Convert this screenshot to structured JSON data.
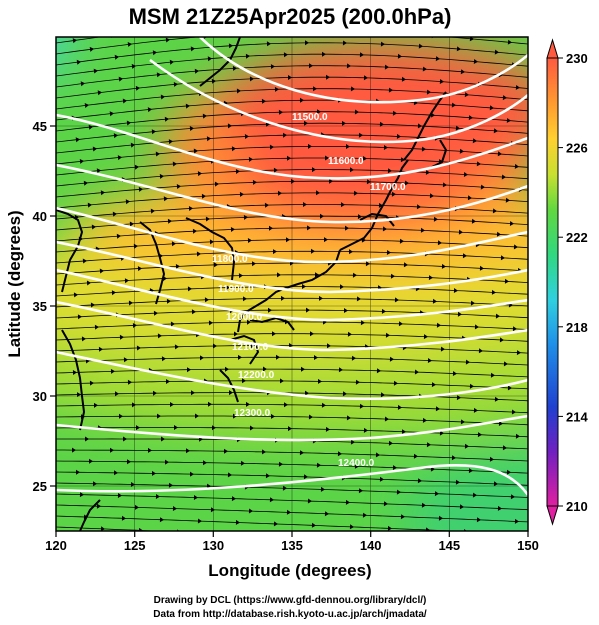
{
  "title": "MSM 21Z25Apr2025 (200.0hPa)",
  "xlabel": "Longitude (degrees)",
  "ylabel": "Latitude  (degrees)",
  "xticks": [
    "120",
    "125",
    "130",
    "135",
    "140",
    "145",
    "150"
  ],
  "yticks": [
    "25",
    "30",
    "35",
    "40",
    "45"
  ],
  "colorbar": {
    "ticks": [
      "230",
      "226",
      "222",
      "218",
      "214",
      "210"
    ],
    "colors": [
      "#e0208a",
      "#3030c0",
      "#1f7fe0",
      "#30c8e0",
      "#30d070",
      "#8adc30",
      "#e8e030",
      "#ffb030",
      "#ff5a40"
    ]
  },
  "contours": [
    {
      "label": "11500.0"
    },
    {
      "label": "11600.0"
    },
    {
      "label": "11700.0"
    },
    {
      "label": "11800.0"
    },
    {
      "label": "11900.0"
    },
    {
      "label": "12000.0"
    },
    {
      "label": "12100.0"
    },
    {
      "label": "12200.0"
    },
    {
      "label": "12300.0"
    },
    {
      "label": "12400.0"
    }
  ],
  "footer": {
    "line1": "Drawing by DCL (https://www.gfd-dennou.org/library/dcl/)",
    "line2": "Data from http://database.rish.kyoto-u.ac.jp/arch/jmadata/"
  },
  "chart_data": {
    "type": "heatmap",
    "title": "MSM 21Z25Apr2025 (200.0hPa)",
    "xlabel": "Longitude (degrees)",
    "ylabel": "Latitude  (degrees)",
    "xlim": [
      120,
      150
    ],
    "ylim": [
      22.5,
      47.5
    ],
    "colorbar_range": [
      210,
      230
    ],
    "colorbar_ticks": [
      230,
      226,
      222,
      218,
      214,
      210
    ],
    "contour_levels": [
      11500,
      11600,
      11700,
      11800,
      11900,
      12000,
      12100,
      12200,
      12300,
      12400
    ],
    "contour_color": "white",
    "overlay": "streamlines with arrows",
    "warm_core": {
      "lon": 138,
      "lat": 44
    },
    "colormap": "magenta-blue-cyan-green-yellow-orange-red"
  }
}
